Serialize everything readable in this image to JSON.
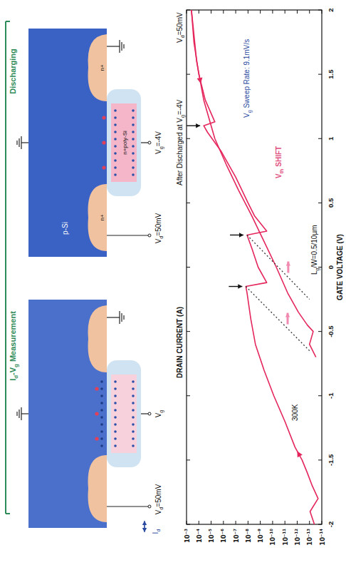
{
  "chart_data": {
    "type": "line",
    "title": "After Discharged at Vg=-4V",
    "annotations": [
      "Vd=50mV",
      "Vg Sweep Rate: 9.1mV/s",
      "Vth SHIFT",
      "Lg/W=0.5/10µm",
      "300K"
    ],
    "x_label": "GATE VOLTAGE (V)",
    "y_label": "DRAIN CURRENT (A)",
    "xlim": [
      -2,
      2
    ],
    "xticks": [
      -2,
      -1.5,
      -1,
      -0.5,
      0,
      0.5,
      1,
      1.5,
      2
    ],
    "ylim": [
      1e-14,
      0.001
    ],
    "yticks": [
      {
        "value": 1e-14,
        "label": "10⁻¹⁴"
      },
      {
        "value": 1e-13,
        "label": "10⁻¹³"
      },
      {
        "value": 1e-12,
        "label": "10⁻¹²"
      },
      {
        "value": 1e-11,
        "label": "10⁻¹¹"
      },
      {
        "value": 1e-10,
        "label": "10⁻¹⁰"
      },
      {
        "value": 1e-09,
        "label": "10⁻⁹"
      },
      {
        "value": 1e-08,
        "label": "10⁻⁸"
      },
      {
        "value": 1e-07,
        "label": "10⁻⁷"
      },
      {
        "value": 1e-06,
        "label": "10⁻⁶"
      },
      {
        "value": 1e-05,
        "label": "10⁻⁵"
      },
      {
        "value": 0.0001,
        "label": "10⁻⁴"
      },
      {
        "value": 0.001,
        "label": "10⁻³"
      }
    ],
    "log": "y",
    "grid": false,
    "series": [
      {
        "color": "#e5265c",
        "line_style": "solid",
        "x": [
          -2,
          -1.9,
          -1.8,
          -1.7,
          -1.6,
          -1.5,
          -1.4,
          -1.2,
          -1,
          -0.8,
          -0.6,
          -0.4,
          -0.2,
          -0.15,
          -0.12,
          0,
          0.15,
          0.25,
          0.28,
          0.4,
          0.5,
          0.7,
          0.9,
          1.05,
          1.1,
          1.13,
          1.3,
          1.5,
          1.75,
          2
        ],
        "values": [
          4e-14,
          9e-14,
          2e-14,
          6e-14,
          1.5e-13,
          4e-13,
          1.5e-12,
          1e-11,
          8e-11,
          5e-10,
          2.5e-09,
          6e-09,
          1.2e-08,
          1.5e-08,
          3e-10,
          1.5e-09,
          5e-09,
          1.2e-08,
          3e-10,
          3e-09,
          1e-08,
          1e-07,
          1.5e-06,
          2e-05,
          4e-05,
          5e-06,
          3e-05,
          0.0001,
          0.00025,
          0.0004
        ]
      },
      {
        "color": "#e5265c",
        "line_style": "solid",
        "x": [
          2,
          1.6,
          1.3,
          1,
          0.8,
          0.6,
          0.4,
          0.2,
          0,
          -0.2,
          -0.35,
          -0.45,
          -0.5,
          -0.6,
          -0.7
        ],
        "values": [
          0.0004,
          0.00015,
          4e-05,
          5e-06,
          6e-07,
          6e-08,
          5e-09,
          5e-10,
          5e-11,
          6e-12,
          8e-13,
          1.5e-13,
          5e-14,
          1e-13,
          3e-14
        ]
      },
      {
        "color": "#333333",
        "line_style": "dotted",
        "x": [
          0.25,
          -0.25
        ],
        "values": [
          1.2e-08,
          1e-13
        ]
      },
      {
        "color": "#333333",
        "line_style": "dotted",
        "x": [
          -0.15,
          -0.65
        ],
        "values": [
          1.5e-08,
          1e-13
        ]
      }
    ]
  },
  "diagram": {
    "panels": [
      {
        "title": "Discharging",
        "gate": "Vg=-4V",
        "drain": "Vd=50mV",
        "gate_material": "n+poly-Si",
        "substrate": "p-Si",
        "source_region": "n+",
        "drain_region": "n+"
      },
      {
        "title": "Id-Vg Measurement",
        "gate": "Vg",
        "drain": "Vd=50mV",
        "current": "Id"
      }
    ]
  }
}
